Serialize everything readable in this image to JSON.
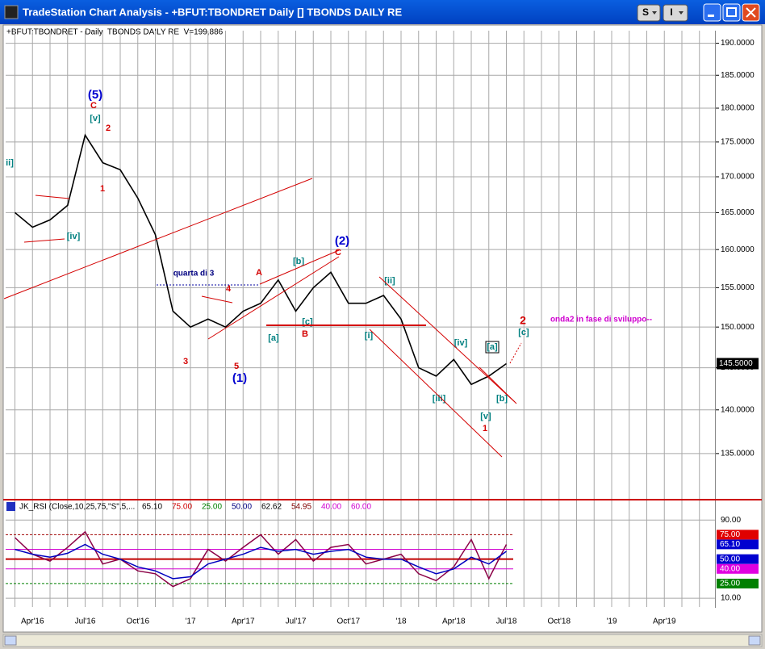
{
  "window": {
    "title": "TradeStation Chart Analysis - +BFUT:TBONDRET Daily [] TBONDS DAILY RE",
    "buttons": [
      "S",
      "I"
    ]
  },
  "chart_data": [
    {
      "type": "line",
      "subtitle": "+BFUT:TBONDRET - Daily  TBONDS DAILY RE  V=199,886",
      "categories": [
        null,
        "Apr'16",
        null,
        null,
        "Jul'16",
        null,
        null,
        "Oct'16",
        null,
        null,
        "'17",
        null,
        null,
        "Apr'17",
        null,
        null,
        "Jul'17",
        null,
        null,
        "Oct'17",
        null,
        null,
        "'18",
        null,
        null,
        "Apr'18",
        null,
        null,
        "Jul'18",
        null,
        null,
        "Oct'18",
        null,
        null,
        "'19",
        null,
        null,
        "Apr'19",
        null,
        null
      ],
      "values": [
        165,
        163,
        164,
        166,
        176,
        172,
        171,
        167,
        162,
        152,
        150,
        151,
        150,
        152,
        153,
        156,
        152,
        155,
        157,
        153,
        153,
        154,
        151,
        145,
        144,
        146,
        143,
        144,
        145.5,
        null,
        null,
        null,
        null,
        null,
        null,
        null,
        null,
        null,
        null,
        null
      ],
      "color": "#000000",
      "log_scale": true,
      "ylim": [
        130,
        192
      ],
      "yticks": [
        {
          "value": 135,
          "label": "135.0000"
        },
        {
          "value": 140,
          "label": "140.0000"
        },
        {
          "value": 145,
          "label": "145.0000"
        },
        {
          "value": 150,
          "label": "150.0000"
        },
        {
          "value": 155,
          "label": "155.0000"
        },
        {
          "value": 160,
          "label": "160.0000"
        },
        {
          "value": 165,
          "label": "165.0000"
        },
        {
          "value": 170,
          "label": "170.0000"
        },
        {
          "value": 175,
          "label": "175.0000"
        },
        {
          "value": 180,
          "label": "180.0000"
        },
        {
          "value": 185,
          "label": "185.0000"
        },
        {
          "value": 190,
          "label": "190.0000"
        }
      ],
      "grid": true,
      "last_value": {
        "value": 145.5,
        "label": "145.5000"
      },
      "annotations": [
        "(5)",
        "C",
        "[v]",
        "2",
        "1",
        "ii]",
        "[iv]",
        "quarta di 3",
        "4",
        "3",
        "5",
        "(1)",
        "A",
        "[b]",
        "[a]",
        "[c]",
        "B",
        "(2)",
        "C",
        "[ii]",
        "[i]",
        "[iv]",
        "[iii]",
        "[v]",
        "1",
        "[a]",
        "[b]",
        "2",
        "[c]",
        "onda2 in fase di sviluppo--"
      ]
    },
    {
      "type": "line",
      "title": "JK_RSI (Close,10,25,75,\"S\",5,...",
      "series": [
        {
          "color": "#8b0046",
          "values": [
            72,
            55,
            48,
            62,
            78,
            45,
            50,
            38,
            35,
            22,
            30,
            60,
            48,
            62,
            75,
            55,
            70,
            48,
            62,
            65,
            45,
            50,
            55,
            35,
            28,
            42,
            70,
            30,
            65,
            null,
            null,
            null,
            null,
            null,
            null,
            null,
            null,
            null,
            null,
            null
          ]
        },
        {
          "color": "#0000c0",
          "values": [
            60,
            55,
            52,
            56,
            65,
            55,
            50,
            42,
            38,
            30,
            32,
            45,
            50,
            55,
            62,
            58,
            60,
            55,
            58,
            60,
            52,
            50,
            50,
            42,
            35,
            40,
            52,
            45,
            58,
            null,
            null,
            null,
            null,
            null,
            null,
            null,
            null,
            null,
            null,
            null
          ]
        }
      ],
      "legend_values": [
        {
          "value": 65.1,
          "label": "65.10",
          "color": "#000000"
        },
        {
          "value": 75,
          "label": "75.00",
          "color": "#d00000"
        },
        {
          "value": 25,
          "label": "25.00",
          "color": "#008000"
        },
        {
          "value": 50,
          "label": "50.00",
          "color": "#000080"
        },
        {
          "value": 62.62,
          "label": "62.62",
          "color": "#000000"
        },
        {
          "value": 54.95,
          "label": "54.95",
          "color": "#800000"
        },
        {
          "value": 40,
          "label": "40.00",
          "color": "#d000d0"
        },
        {
          "value": 60,
          "label": "60.00",
          "color": "#d000d0"
        }
      ],
      "ylim": [
        1,
        110
      ],
      "yticks": [
        {
          "value": 10,
          "label": "10.00"
        },
        {
          "value": 90,
          "label": "90.00"
        }
      ],
      "grid": true
    }
  ]
}
